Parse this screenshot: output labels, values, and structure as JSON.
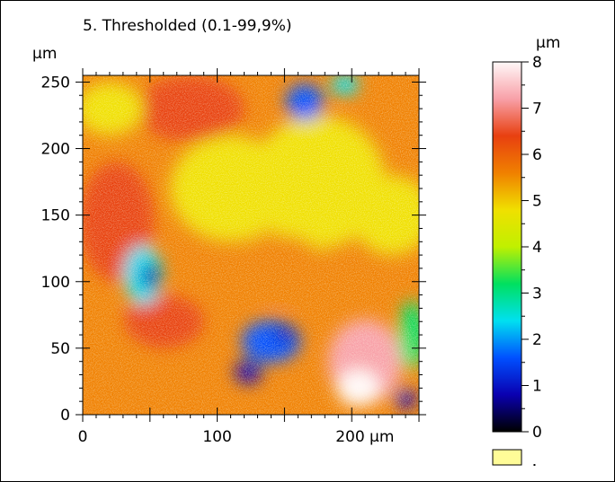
{
  "chart_data": {
    "type": "heatmap",
    "title": "5. Thresholded (0.1-99,9%)",
    "x_unit": "µm",
    "y_unit": "µm",
    "xlim": [
      0,
      250
    ],
    "ylim": [
      0,
      255
    ],
    "x_ticks": [
      {
        "value": 0,
        "label": "0"
      },
      {
        "value": 100,
        "label": "100"
      },
      {
        "value": 200,
        "label": "200 µm"
      }
    ],
    "y_ticks": [
      {
        "value": 0,
        "label": "0"
      },
      {
        "value": 50,
        "label": "50"
      },
      {
        "value": 100,
        "label": "100"
      },
      {
        "value": 150,
        "label": "150"
      },
      {
        "value": 200,
        "label": "200"
      },
      {
        "value": 250,
        "label": "250"
      }
    ],
    "colorbar": {
      "unit": "µm",
      "range": [
        0,
        8
      ],
      "ticks": [
        {
          "value": 0,
          "label": "0"
        },
        {
          "value": 1,
          "label": "1"
        },
        {
          "value": 2,
          "label": "2"
        },
        {
          "value": 3,
          "label": "3"
        },
        {
          "value": 4,
          "label": "4"
        },
        {
          "value": 5,
          "label": "5"
        },
        {
          "value": 6,
          "label": "6"
        },
        {
          "value": 7,
          "label": "7"
        },
        {
          "value": 8,
          "label": "8"
        }
      ],
      "colormap": [
        "#000000",
        "#0a00b0",
        "#0050ff",
        "#00e0f0",
        "#00e060",
        "#c0f000",
        "#f0e000",
        "#f08000",
        "#e84010",
        "#f8a0a8",
        "#fff8f8"
      ]
    },
    "height_map": {
      "base_level": 5.4,
      "features": [
        {
          "x": 45,
          "y": 105,
          "rx": 14,
          "ry": 22,
          "level": 2.4
        },
        {
          "x": 50,
          "y": 104,
          "rx": 7,
          "ry": 10,
          "level": 0.6
        },
        {
          "x": 25,
          "y": 145,
          "rx": 28,
          "ry": 45,
          "level": 6.4
        },
        {
          "x": 140,
          "y": 55,
          "rx": 22,
          "ry": 16,
          "level": 1.5
        },
        {
          "x": 123,
          "y": 32,
          "rx": 10,
          "ry": 9,
          "level": 0.5
        },
        {
          "x": 150,
          "y": 60,
          "rx": 8,
          "ry": 6,
          "level": 1.0
        },
        {
          "x": 210,
          "y": 40,
          "rx": 28,
          "ry": 32,
          "level": 7.3
        },
        {
          "x": 205,
          "y": 20,
          "rx": 16,
          "ry": 14,
          "level": 7.8
        },
        {
          "x": 245,
          "y": 60,
          "rx": 10,
          "ry": 26,
          "level": 2.8
        },
        {
          "x": 240,
          "y": 12,
          "rx": 8,
          "ry": 8,
          "level": 0.9
        },
        {
          "x": 165,
          "y": 235,
          "rx": 14,
          "ry": 14,
          "level": 1.6
        },
        {
          "x": 195,
          "y": 248,
          "rx": 10,
          "ry": 8,
          "level": 2.6
        },
        {
          "x": 20,
          "y": 40,
          "rx": 22,
          "ry": 30,
          "level": 5.2
        },
        {
          "x": 175,
          "y": 175,
          "rx": 50,
          "ry": 50,
          "level": 4.6
        },
        {
          "x": 110,
          "y": 170,
          "rx": 45,
          "ry": 40,
          "level": 4.8
        },
        {
          "x": 20,
          "y": 230,
          "rx": 25,
          "ry": 20,
          "level": 4.4
        },
        {
          "x": 80,
          "y": 230,
          "rx": 40,
          "ry": 25,
          "level": 6.0
        },
        {
          "x": 150,
          "y": 110,
          "rx": 30,
          "ry": 25,
          "level": 5.7
        },
        {
          "x": 60,
          "y": 70,
          "rx": 30,
          "ry": 20,
          "level": 6.1
        },
        {
          "x": 230,
          "y": 150,
          "rx": 30,
          "ry": 30,
          "level": 5.0
        }
      ]
    }
  }
}
